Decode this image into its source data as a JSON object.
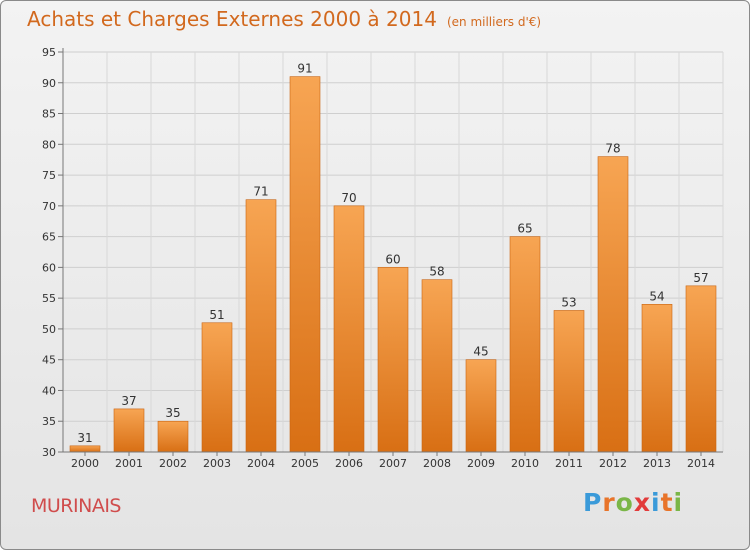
{
  "title": "Achats et Charges Externes 2000 à 2014",
  "unit": "(en milliers d'€)",
  "location": "MURINAIS",
  "logo": {
    "letters": [
      "P",
      "r",
      "o",
      "x",
      "i",
      "t",
      "i"
    ],
    "colors": [
      "#3a9ad9",
      "#e8742a",
      "#7ab648",
      "#e23b3b",
      "#3a9ad9",
      "#e8742a",
      "#7ab648"
    ]
  },
  "colors": {
    "bar_light": "#f7a553",
    "bar_dark": "#d86f14",
    "title": "#d2691e",
    "location": "#d04c4c"
  },
  "chart_data": {
    "type": "bar",
    "categories": [
      "2000",
      "2001",
      "2002",
      "2003",
      "2004",
      "2005",
      "2006",
      "2007",
      "2008",
      "2009",
      "2010",
      "2011",
      "2012",
      "2013",
      "2014"
    ],
    "values": [
      31,
      37,
      35,
      51,
      71,
      91,
      70,
      60,
      58,
      45,
      65,
      53,
      78,
      54,
      57
    ],
    "ylim": [
      30,
      95
    ],
    "yticks": [
      30,
      35,
      40,
      45,
      50,
      55,
      60,
      65,
      70,
      75,
      80,
      85,
      90,
      95
    ],
    "grid": true
  }
}
